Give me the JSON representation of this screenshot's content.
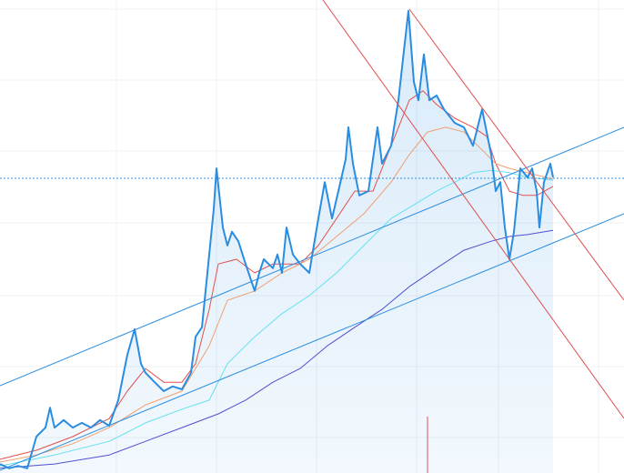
{
  "chart_data": {
    "type": "line",
    "xlim": [
      0,
      686
    ],
    "ylim": [
      0,
      100
    ],
    "grid": true,
    "area_color": "#2a8de0",
    "series": [
      {
        "color": "#2a8de0",
        "width": 2,
        "area": true,
        "x": [
          0,
          10,
          20,
          30,
          40,
          50,
          55,
          60,
          70,
          80,
          90,
          100,
          110,
          120,
          130,
          135,
          140,
          148,
          155,
          160,
          170,
          180,
          190,
          200,
          210,
          215,
          222,
          228,
          235,
          238,
          245,
          250,
          255,
          262,
          270,
          280,
          285,
          290,
          300,
          305,
          310,
          315,
          322,
          330,
          340,
          345,
          350,
          357,
          365,
          372,
          380,
          383,
          388,
          395,
          405,
          415,
          420,
          430,
          438,
          443,
          449,
          455,
          460,
          466,
          472,
          480,
          488,
          500,
          510,
          520,
          530,
          540,
          545,
          550,
          555,
          560,
          565,
          572,
          580,
          585,
          590,
          593,
          598,
          605,
          608
        ],
        "values": [
          1.9,
          1.0,
          1.5,
          1.0,
          7.7,
          9.6,
          13.8,
          9.6,
          11.2,
          9.6,
          10.6,
          9.6,
          11.2,
          10.0,
          15.4,
          20.2,
          25.0,
          30.4,
          23.1,
          21.2,
          19.2,
          17.3,
          18.3,
          17.7,
          21.2,
          28.8,
          30.8,
          42.3,
          55.8,
          64.4,
          51.9,
          48.1,
          51.0,
          49.0,
          44.2,
          38.5,
          42.3,
          45.2,
          43.3,
          46.2,
          42.3,
          51.9,
          46.2,
          44.2,
          42.3,
          48.1,
          53.8,
          61.5,
          53.8,
          59.6,
          66.3,
          73.1,
          65.4,
          58.7,
          59.6,
          73.1,
          65.4,
          69.2,
          78.8,
          87.5,
          97.7,
          82.7,
          78.8,
          88.5,
          78.8,
          79.8,
          76.9,
          74.0,
          73.1,
          69.2,
          76.9,
          67.3,
          59.6,
          61.5,
          51.9,
          45.2,
          51.0,
          64.4,
          62.5,
          64.4,
          59.6,
          51.9,
          61.5,
          65.4,
          62.5
        ]
      },
      {
        "color": "#e0504f",
        "width": 1,
        "x": [
          0,
          40,
          80,
          120,
          140,
          160,
          180,
          200,
          215,
          230,
          240,
          260,
          280,
          300,
          330,
          350,
          370,
          390,
          410,
          430,
          450,
          465,
          480,
          500,
          520,
          535,
          545,
          560,
          575,
          590,
          608
        ],
        "values": [
          2.9,
          4.8,
          7.7,
          11.5,
          17.3,
          22.1,
          19.2,
          19.2,
          23.1,
          34.6,
          44.2,
          45.2,
          42.3,
          44.2,
          44.2,
          48.1,
          53.8,
          59.6,
          59.6,
          69.2,
          78.8,
          80.8,
          77.9,
          75.0,
          73.1,
          71.2,
          65.4,
          59.6,
          58.7,
          58.7,
          60.6
        ]
      },
      {
        "color": "#f0a070",
        "width": 1,
        "x": [
          0,
          40,
          80,
          120,
          160,
          200,
          230,
          250,
          280,
          310,
          340,
          370,
          400,
          430,
          450,
          470,
          490,
          510,
          530,
          545,
          560,
          580,
          600,
          608
        ],
        "values": [
          2.3,
          3.8,
          6.2,
          9.6,
          14.4,
          17.3,
          26.9,
          36.5,
          38.5,
          42.3,
          45.2,
          50.0,
          54.8,
          61.5,
          67.3,
          72.1,
          73.1,
          72.1,
          68.3,
          65.4,
          64.4,
          63.5,
          62.5,
          62.1
        ]
      },
      {
        "color": "#66e0f0",
        "width": 1,
        "x": [
          0,
          60,
          120,
          160,
          200,
          230,
          250,
          280,
          310,
          340,
          370,
          400,
          430,
          455,
          480,
          500,
          520,
          540,
          560,
          580,
          608
        ],
        "values": [
          1.5,
          3.8,
          6.7,
          10.6,
          13.5,
          15.4,
          23.1,
          28.8,
          33.7,
          37.5,
          42.3,
          48.1,
          53.8,
          56.7,
          59.6,
          61.5,
          63.5,
          64.0,
          63.5,
          62.5,
          61.9
        ]
      },
      {
        "color": "#5050d0",
        "width": 1,
        "x": [
          0,
          60,
          120,
          160,
          200,
          240,
          270,
          300,
          330,
          360,
          390,
          420,
          450,
          480,
          510,
          540,
          560,
          580,
          608
        ],
        "values": [
          1.0,
          1.9,
          3.8,
          6.7,
          9.6,
          12.5,
          15.4,
          19.2,
          22.1,
          26.9,
          30.8,
          34.6,
          39.4,
          43.3,
          47.1,
          49.0,
          50.0,
          50.4,
          51.3
        ]
      }
    ]
  }
}
